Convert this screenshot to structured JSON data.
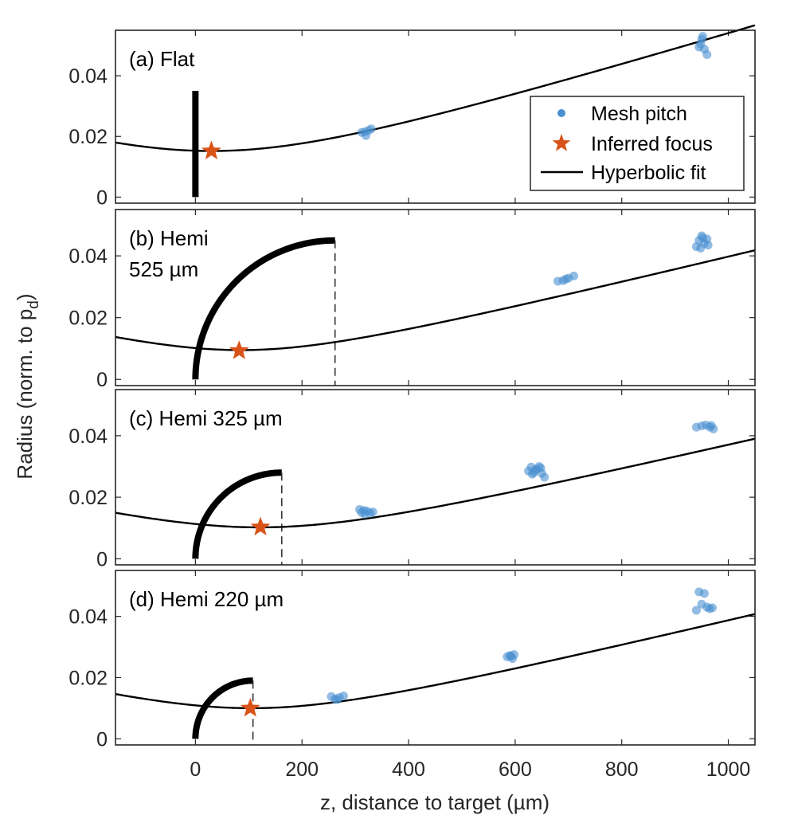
{
  "chart_data": [
    {
      "type": "scatter",
      "panel_label": "(a) Flat",
      "xlim": [
        -150,
        1050
      ],
      "ylim": [
        -0.002,
        0.055
      ],
      "yticks": [
        0,
        0.02,
        0.04
      ],
      "ytick_labels": [
        "0",
        "0.02",
        "0.04"
      ],
      "target": {
        "shape": "flat",
        "height": 0.035
      },
      "fit": {
        "z0": 30,
        "w0": 0.0152,
        "slope": 5.35e-05
      },
      "focus": {
        "x": 30,
        "y": 0.0152
      },
      "mesh_pitch": [
        {
          "x": 312,
          "y": 0.0213
        },
        {
          "x": 320,
          "y": 0.0203
        },
        {
          "x": 325,
          "y": 0.022
        },
        {
          "x": 330,
          "y": 0.0225
        },
        {
          "x": 318,
          "y": 0.0215
        },
        {
          "x": 945,
          "y": 0.0495
        },
        {
          "x": 950,
          "y": 0.052
        },
        {
          "x": 955,
          "y": 0.0488
        },
        {
          "x": 952,
          "y": 0.053
        },
        {
          "x": 960,
          "y": 0.047
        },
        {
          "x": 948,
          "y": 0.0505
        }
      ]
    },
    {
      "type": "scatter",
      "panel_label_lines": [
        "(b) Hemi",
        "525 µm"
      ],
      "xlim": [
        -150,
        1050
      ],
      "ylim": [
        -0.002,
        0.055
      ],
      "yticks": [
        0,
        0.02,
        0.04
      ],
      "ytick_labels": [
        "0",
        "0.02",
        "0.04"
      ],
      "target": {
        "shape": "hemi",
        "radius_um": 262,
        "height": 0.045
      },
      "fit": {
        "z0": 85,
        "w0": 0.0095,
        "slope": 4.22e-05
      },
      "focus": {
        "x": 82,
        "y": 0.0093
      },
      "mesh_pitch": [
        {
          "x": 680,
          "y": 0.0318
        },
        {
          "x": 690,
          "y": 0.032
        },
        {
          "x": 700,
          "y": 0.0328
        },
        {
          "x": 710,
          "y": 0.0335
        },
        {
          "x": 695,
          "y": 0.0325
        },
        {
          "x": 940,
          "y": 0.043
        },
        {
          "x": 945,
          "y": 0.045
        },
        {
          "x": 950,
          "y": 0.0465
        },
        {
          "x": 955,
          "y": 0.044
        },
        {
          "x": 960,
          "y": 0.0455
        },
        {
          "x": 948,
          "y": 0.0425
        },
        {
          "x": 962,
          "y": 0.0435
        },
        {
          "x": 952,
          "y": 0.0458
        }
      ]
    },
    {
      "type": "scatter",
      "panel_label": "(c) Hemi 325 µm",
      "xlim": [
        -150,
        1050
      ],
      "ylim": [
        -0.002,
        0.055
      ],
      "yticks": [
        0,
        0.02,
        0.04
      ],
      "ytick_labels": [
        "0",
        "0.02",
        "0.04"
      ],
      "target": {
        "shape": "hemi",
        "radius_um": 162,
        "height": 0.028
      },
      "fit": {
        "z0": 120,
        "w0": 0.0102,
        "slope": 4.05e-05
      },
      "focus": {
        "x": 122,
        "y": 0.0103
      },
      "mesh_pitch": [
        {
          "x": 308,
          "y": 0.016
        },
        {
          "x": 312,
          "y": 0.015
        },
        {
          "x": 318,
          "y": 0.0145
        },
        {
          "x": 322,
          "y": 0.0155
        },
        {
          "x": 328,
          "y": 0.0148
        },
        {
          "x": 333,
          "y": 0.0152
        },
        {
          "x": 316,
          "y": 0.0157
        },
        {
          "x": 625,
          "y": 0.0285
        },
        {
          "x": 630,
          "y": 0.0298
        },
        {
          "x": 635,
          "y": 0.028
        },
        {
          "x": 640,
          "y": 0.0292
        },
        {
          "x": 645,
          "y": 0.03
        },
        {
          "x": 650,
          "y": 0.0278
        },
        {
          "x": 655,
          "y": 0.0265
        },
        {
          "x": 638,
          "y": 0.0288
        },
        {
          "x": 648,
          "y": 0.0295
        },
        {
          "x": 632,
          "y": 0.0275
        },
        {
          "x": 940,
          "y": 0.0428
        },
        {
          "x": 950,
          "y": 0.0432
        },
        {
          "x": 958,
          "y": 0.0435
        },
        {
          "x": 965,
          "y": 0.0428
        },
        {
          "x": 972,
          "y": 0.0422
        },
        {
          "x": 968,
          "y": 0.0433
        }
      ]
    },
    {
      "type": "scatter",
      "panel_label": "(d) Hemi 220 µm",
      "xlim": [
        -150,
        1050
      ],
      "ylim": [
        -0.002,
        0.055
      ],
      "yticks": [
        0,
        0.02,
        0.04
      ],
      "ytick_labels": [
        "0",
        "0.02",
        "0.04"
      ],
      "target": {
        "shape": "hemi",
        "radius_um": 108,
        "height": 0.019
      },
      "fit": {
        "z0": 105,
        "w0": 0.01,
        "slope": 4.18e-05
      },
      "focus": {
        "x": 103,
        "y": 0.01
      },
      "mesh_pitch": [
        {
          "x": 255,
          "y": 0.0138
        },
        {
          "x": 262,
          "y": 0.013
        },
        {
          "x": 270,
          "y": 0.0135
        },
        {
          "x": 278,
          "y": 0.014
        },
        {
          "x": 266,
          "y": 0.0128
        },
        {
          "x": 585,
          "y": 0.0268
        },
        {
          "x": 590,
          "y": 0.0272
        },
        {
          "x": 595,
          "y": 0.0262
        },
        {
          "x": 598,
          "y": 0.0275
        },
        {
          "x": 592,
          "y": 0.027
        },
        {
          "x": 940,
          "y": 0.042
        },
        {
          "x": 945,
          "y": 0.048
        },
        {
          "x": 950,
          "y": 0.044
        },
        {
          "x": 955,
          "y": 0.0475
        },
        {
          "x": 960,
          "y": 0.043
        },
        {
          "x": 965,
          "y": 0.0425
        },
        {
          "x": 970,
          "y": 0.0428
        }
      ]
    }
  ],
  "xaxis": {
    "label": "z, distance to target (µm)",
    "ticks": [
      0,
      200,
      400,
      600,
      800,
      1000
    ],
    "tick_labels": [
      "0",
      "200",
      "400",
      "600",
      "800",
      "1000"
    ]
  },
  "yaxis": {
    "label_main": "Radius (norm. to p",
    "label_sub": "d",
    "label_close": ")"
  },
  "legend": {
    "placement": "top-right of panel (a)",
    "entries": [
      {
        "label": "Mesh pitch",
        "marker": "dot"
      },
      {
        "label": "Inferred focus",
        "marker": "star"
      },
      {
        "label": "Hyperbolic fit",
        "marker": "line"
      }
    ]
  },
  "colors": {
    "mesh_pitch": "#4a90d0",
    "focus": "#d95319",
    "fit": "#000000",
    "target": "#000000",
    "axes": "#262626"
  }
}
